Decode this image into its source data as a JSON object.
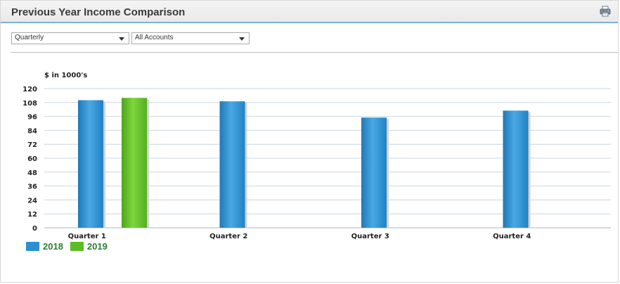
{
  "header": {
    "title": "Previous Year Income Comparison",
    "print_icon": "printer-icon"
  },
  "filters": {
    "period": {
      "value": "Quarterly"
    },
    "accounts": {
      "value": "All Accounts"
    }
  },
  "colors": {
    "series_2018": "#2b8fd1",
    "series_2019": "#5bbd24",
    "grid": "#c9d6e3",
    "text": "#222222"
  },
  "chart_data": {
    "type": "bar",
    "ylabel": "$ in 1000's",
    "xlabel": "",
    "categories": [
      "Quarter 1",
      "Quarter 2",
      "Quarter 3",
      "Quarter 4"
    ],
    "series": [
      {
        "name": "2018",
        "values": [
          110,
          109,
          95,
          101
        ]
      },
      {
        "name": "2019",
        "values": [
          112,
          null,
          null,
          null
        ]
      }
    ],
    "ylim": [
      0,
      120
    ],
    "yticks": [
      0,
      12,
      24,
      36,
      48,
      60,
      72,
      84,
      96,
      108,
      120
    ],
    "grid": true,
    "legend": "bottom-left"
  }
}
